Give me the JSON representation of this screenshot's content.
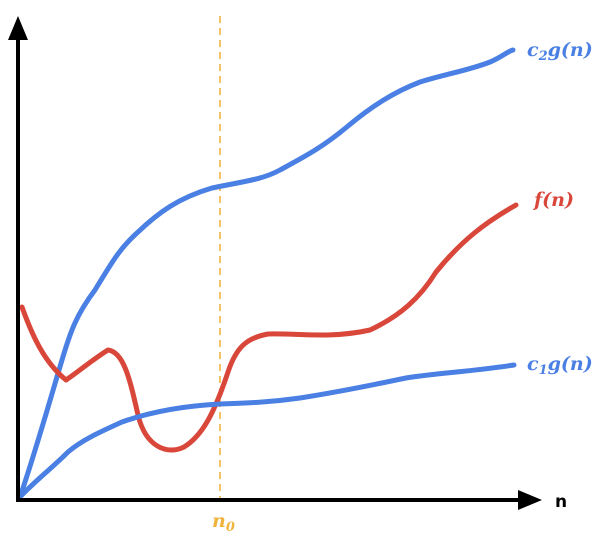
{
  "colors": {
    "upper_bound": "#4a7fe3",
    "lower_bound": "#4a7fe3",
    "function": "#d9463a",
    "threshold": "#f0b43c",
    "axis": "#000000"
  },
  "axes": {
    "x_label": "n"
  },
  "threshold": {
    "label_main": "n",
    "label_sub": "0"
  },
  "curves": {
    "upper": {
      "label_coef": "c",
      "label_sub": "2",
      "label_rest": "g(n)"
    },
    "function": {
      "label": "f(n)"
    },
    "lower": {
      "label_coef": "c",
      "label_sub": "1",
      "label_rest": "g(n)"
    }
  }
}
